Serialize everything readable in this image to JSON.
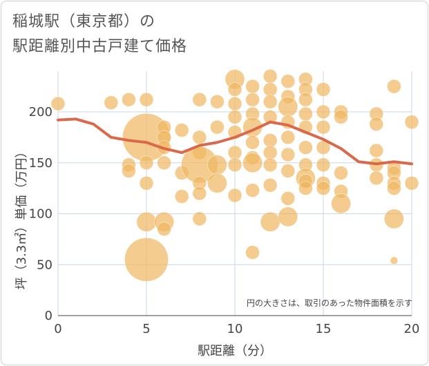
{
  "title_line1": "稲城駅（東京都）の",
  "title_line2": "駅距離別中古戸建て価格",
  "chart_data": {
    "type": "scatter",
    "xlabel": "駅距離（分）",
    "ylabel": "坪（3.3㎡）単価（万円）",
    "xlim": [
      0,
      20
    ],
    "ylim": [
      0,
      240
    ],
    "x_ticks": [
      0,
      5,
      10,
      15,
      20
    ],
    "y_ticks": [
      0,
      50,
      100,
      150,
      200
    ],
    "grid": true,
    "annotation": "円の大きさは、取引のあった物件面積を示す",
    "colors": {
      "bubble": "#f0b660",
      "line": "#d9694a",
      "grid": "#c9d7e6"
    },
    "bubble_series": {
      "x": [
        0,
        3,
        4,
        5,
        4,
        4,
        5,
        5,
        5,
        5,
        6,
        6,
        6,
        6,
        6,
        6,
        7,
        7,
        7,
        8,
        8,
        8,
        8,
        8,
        8,
        8,
        9,
        9,
        9,
        9,
        10,
        10,
        10,
        10,
        10,
        10,
        10,
        10,
        11,
        11,
        11,
        11,
        11,
        11,
        11,
        11,
        11,
        12,
        12,
        12,
        12,
        12,
        12,
        12,
        12,
        12,
        13,
        13,
        13,
        13,
        13,
        13,
        13,
        13,
        13,
        14,
        14,
        14,
        14,
        14,
        14,
        14,
        14,
        14,
        14,
        15,
        15,
        15,
        15,
        15,
        15,
        15,
        16,
        16,
        16,
        16,
        16,
        18,
        18,
        18,
        18,
        18,
        19,
        19,
        19,
        19,
        19,
        19,
        20,
        20
      ],
      "y": [
        208,
        209,
        212,
        175,
        148,
        142,
        212,
        150,
        130,
        92,
        185,
        175,
        165,
        150,
        92,
        85,
        182,
        140,
        117,
        212,
        175,
        160,
        148,
        130,
        120,
        95,
        210,
        185,
        148,
        130,
        232,
        222,
        208,
        195,
        180,
        160,
        148,
        118,
        225,
        212,
        198,
        185,
        170,
        155,
        150,
        123,
        62,
        235,
        222,
        210,
        195,
        172,
        160,
        148,
        128,
        92,
        230,
        215,
        205,
        190,
        175,
        158,
        142,
        115,
        97,
        232,
        222,
        212,
        198,
        185,
        165,
        148,
        135,
        132,
        125,
        222,
        200,
        185,
        165,
        148,
        130,
        125,
        200,
        195,
        140,
        122,
        110,
        198,
        188,
        162,
        148,
        135,
        225,
        145,
        140,
        130,
        125,
        95,
        190,
        130
      ],
      "area": [
        1,
        1,
        1,
        12,
        1,
        1,
        1,
        1,
        1,
        2,
        1,
        1,
        1,
        1,
        2,
        1,
        1,
        1,
        1,
        1,
        1,
        1,
        7,
        1,
        1,
        1,
        1,
        1,
        2,
        2,
        2,
        1,
        1,
        1,
        1,
        1,
        1,
        1,
        1,
        1,
        1,
        2,
        1,
        1,
        2,
        1,
        1,
        1,
        1,
        1,
        1,
        1,
        1,
        1,
        1,
        2,
        1,
        1,
        2,
        1,
        1,
        1,
        1,
        1,
        2,
        1,
        1,
        1,
        1,
        1,
        1,
        1,
        2,
        1,
        1,
        1,
        1,
        1,
        1,
        1,
        1,
        1,
        1,
        1,
        1,
        1,
        2,
        1,
        1,
        1,
        1,
        1,
        1,
        1,
        1,
        1,
        1,
        2,
        1,
        1
      ]
    },
    "big_bubbles": [
      {
        "x": 5,
        "y": 55,
        "area": 10
      }
    ],
    "small_bubbles": [
      {
        "x": 19,
        "y": 54,
        "area": 0.3
      }
    ],
    "average_line": {
      "x": [
        0,
        1,
        2,
        3,
        4,
        5,
        6,
        7,
        8,
        9,
        10,
        11,
        12,
        13,
        14,
        15,
        16,
        17,
        18,
        19,
        20
      ],
      "y": [
        192,
        193,
        188,
        175,
        172,
        170,
        164,
        160,
        167,
        170,
        175,
        182,
        190,
        187,
        180,
        173,
        164,
        151,
        149,
        151,
        149
      ]
    }
  }
}
